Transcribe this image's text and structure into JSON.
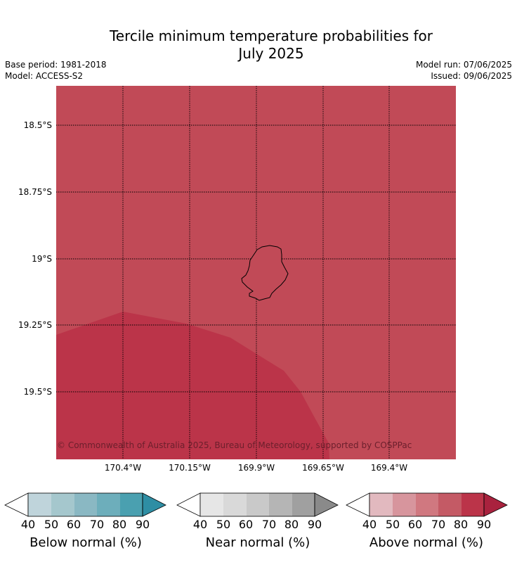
{
  "title": {
    "line1": "Tercile minimum temperature probabilities for",
    "line2": "July 2025"
  },
  "meta": {
    "base_period": "Base period: 1981-2018",
    "model": "Model: ACCESS-S2",
    "model_run": "Model run: 07/06/2025",
    "issued": "Issued: 09/06/2025"
  },
  "map": {
    "latitude_labels": [
      "18.5°S",
      "18.75°S",
      "19°S",
      "19.25°S",
      "19.5°S"
    ],
    "longitude_labels": [
      "170.4°W",
      "170.15°W",
      "169.9°W",
      "169.65°W",
      "169.4°W"
    ],
    "region_colors": {
      "above_70_80": "#c14a57",
      "above_80_90": "#bb3449"
    },
    "copyright": "© Commonwealth of Australia 2025, Bureau of Meteorology, supported by COSPPac"
  },
  "colorbars": [
    {
      "label": "Below normal (%)",
      "ticks": [
        "40",
        "50",
        "60",
        "70",
        "80",
        "90"
      ],
      "colors": [
        "#bfd4db",
        "#a5c7cd",
        "#8ab8c3",
        "#6daebb",
        "#4aa0b0",
        "#2e8ea4"
      ]
    },
    {
      "label": "Near normal (%)",
      "ticks": [
        "40",
        "50",
        "60",
        "70",
        "80",
        "90"
      ],
      "colors": [
        "#e6e6e6",
        "#d9d9d9",
        "#c9c9c9",
        "#b5b5b5",
        "#a0a0a0",
        "#8a8a8a"
      ]
    },
    {
      "label": "Above normal (%)",
      "ticks": [
        "40",
        "50",
        "60",
        "70",
        "80",
        "90"
      ],
      "colors": [
        "#e2b9bf",
        "#d7959d",
        "#d07880",
        "#c45a65",
        "#bb3449",
        "#a9223e"
      ]
    }
  ]
}
